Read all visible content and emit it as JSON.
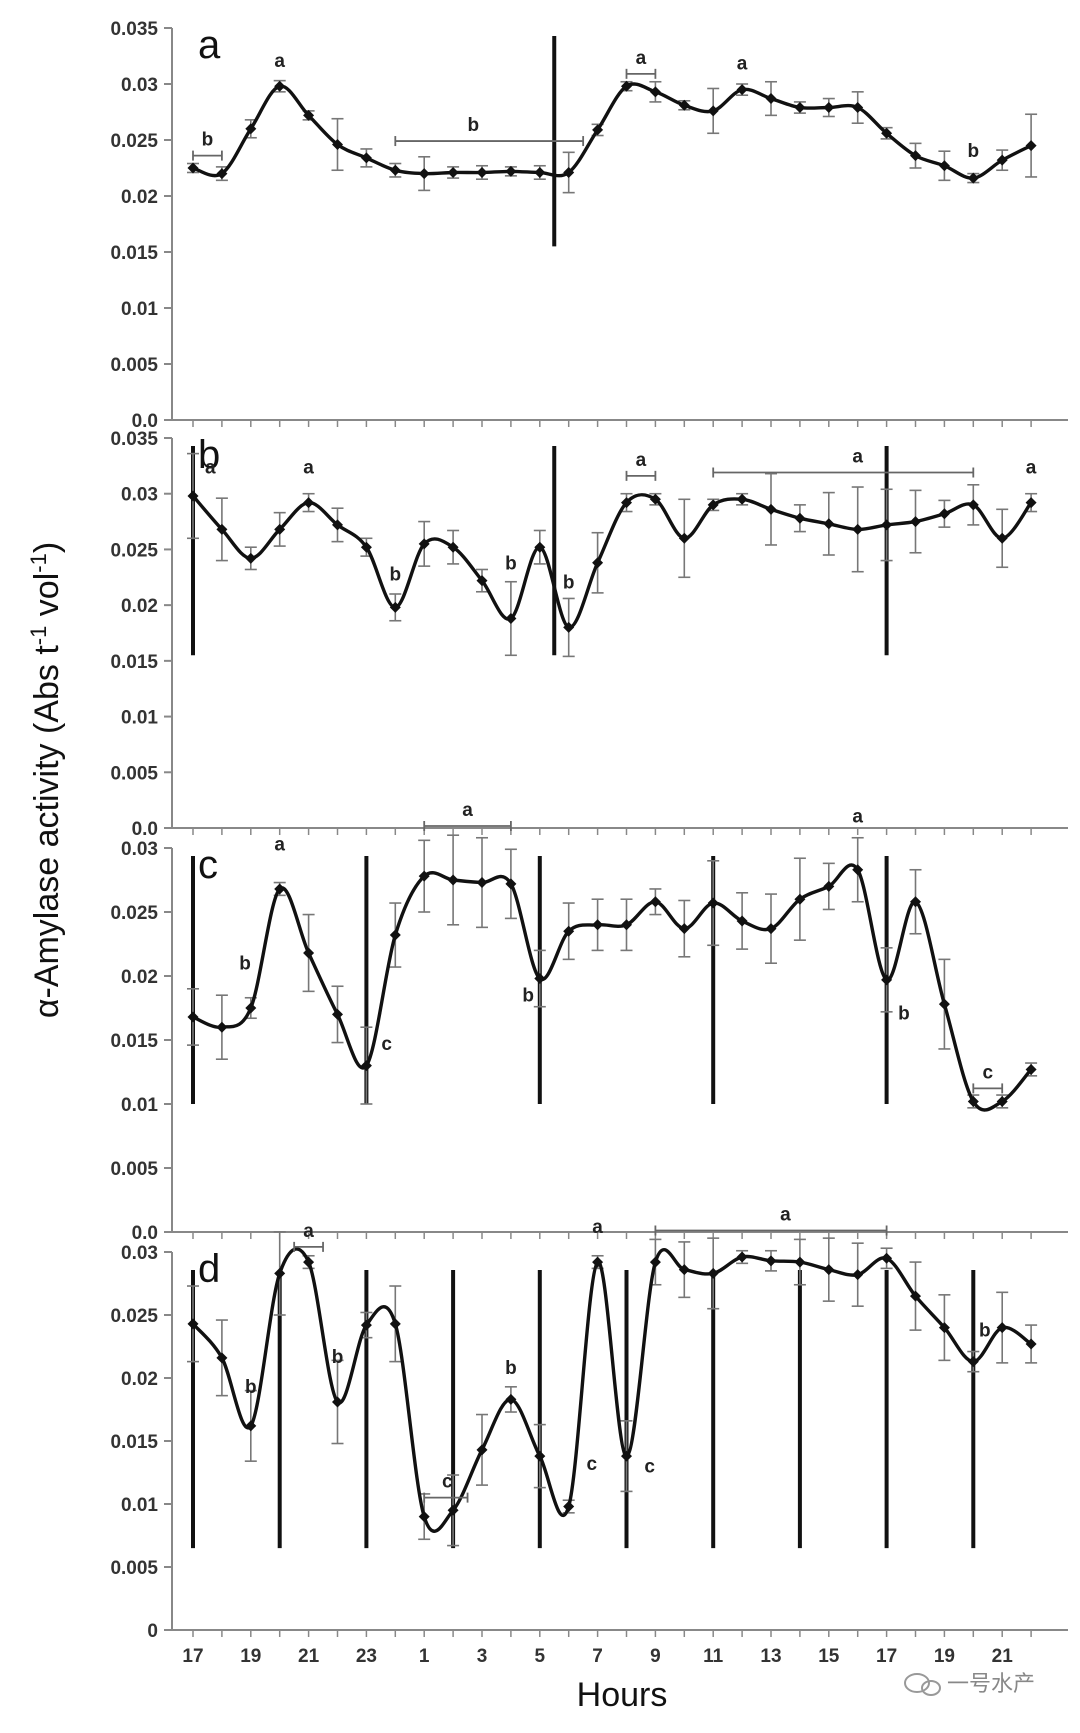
{
  "chart_data": [
    {
      "type": "line",
      "panel": "a",
      "ylim": [
        0,
        0.035
      ],
      "yticks": [
        "0.035",
        "0.03",
        "0.025",
        "0.02",
        "0.015",
        "0.01",
        "0.005",
        "0.0"
      ],
      "x": [
        0,
        1,
        2,
        3,
        4,
        5,
        6,
        7,
        8,
        9,
        10,
        11,
        12,
        13,
        14,
        15,
        16,
        17,
        18,
        19,
        20,
        21,
        22,
        23,
        24,
        25,
        26,
        27,
        28,
        29
      ],
      "values": [
        0.0225,
        0.022,
        0.026,
        0.0298,
        0.0272,
        0.0246,
        0.0234,
        0.0223,
        0.022,
        0.0221,
        0.0221,
        0.0222,
        0.0221,
        0.0221,
        0.0259,
        0.0298,
        0.0293,
        0.0281,
        0.0276,
        0.0295,
        0.0287,
        0.0279,
        0.0279,
        0.0279,
        0.0256,
        0.0236,
        0.0227,
        0.0216,
        0.0232,
        0.0245
      ],
      "errors": [
        0.0004,
        0.0006,
        0.0008,
        0.0005,
        0.0004,
        0.0023,
        0.0008,
        0.0006,
        0.0015,
        0.0005,
        0.0006,
        0.0004,
        0.0006,
        0.0018,
        0.0005,
        0.0004,
        0.0009,
        0.0004,
        0.002,
        0.0005,
        0.0015,
        0.0005,
        0.0008,
        0.0014,
        0.0005,
        0.0011,
        0.0013,
        0.0004,
        0.0009,
        0.0028
      ],
      "vlines": [
        12.5
      ],
      "annotations": [
        {
          "label": "b",
          "x": 0.5,
          "y": 0.0245,
          "bracket": [
            0,
            1
          ]
        },
        {
          "label": "a",
          "x": 3,
          "y": 0.0315
        },
        {
          "label": "b",
          "x": 9.7,
          "y": 0.0258,
          "bracket": [
            7,
            13.5
          ]
        },
        {
          "label": "a",
          "x": 15.5,
          "y": 0.0318,
          "bracket": [
            15,
            16
          ]
        },
        {
          "label": "a",
          "x": 19,
          "y": 0.0313
        },
        {
          "label": "b",
          "x": 27,
          "y": 0.0235
        }
      ]
    },
    {
      "type": "line",
      "panel": "b",
      "ylim": [
        0,
        0.035
      ],
      "yticks": [
        "0.035",
        "0.03",
        "0.025",
        "0.02",
        "0.015",
        "0.01",
        "0.005",
        "0.0"
      ],
      "x": [
        0,
        1,
        2,
        3,
        4,
        5,
        6,
        7,
        8,
        9,
        10,
        11,
        12,
        13,
        14,
        15,
        16,
        17,
        18,
        19,
        20,
        21,
        22,
        23,
        24,
        25,
        26,
        27,
        28,
        29
      ],
      "values": [
        0.0298,
        0.0268,
        0.0242,
        0.0268,
        0.0292,
        0.0272,
        0.0252,
        0.0198,
        0.0255,
        0.0252,
        0.0222,
        0.0188,
        0.0252,
        0.018,
        0.0238,
        0.0292,
        0.0295,
        0.026,
        0.029,
        0.0295,
        0.0286,
        0.0278,
        0.0273,
        0.0268,
        0.0272,
        0.0275,
        0.0282,
        0.029,
        0.026,
        0.0292
      ],
      "errors": [
        0.0038,
        0.0028,
        0.001,
        0.0015,
        0.0008,
        0.0015,
        0.0008,
        0.0012,
        0.002,
        0.0015,
        0.001,
        0.0033,
        0.0015,
        0.0026,
        0.0027,
        0.0008,
        0.0005,
        0.0035,
        0.0005,
        0.0005,
        0.0032,
        0.0012,
        0.0028,
        0.0038,
        0.0032,
        0.0028,
        0.0012,
        0.0018,
        0.0026,
        0.0008
      ],
      "vlines": [
        0,
        12.5,
        24
      ],
      "annotations": [
        {
          "label": "a",
          "x": 0.6,
          "y": 0.0318
        },
        {
          "label": "a",
          "x": 4,
          "y": 0.0318
        },
        {
          "label": "b",
          "x": 7,
          "y": 0.0222
        },
        {
          "label": "b",
          "x": 11,
          "y": 0.0232
        },
        {
          "label": "b",
          "x": 13,
          "y": 0.0215
        },
        {
          "label": "a",
          "x": 15.5,
          "y": 0.0325,
          "bracket": [
            15,
            16
          ]
        },
        {
          "label": "a",
          "x": 23,
          "y": 0.0328,
          "bracket": [
            18,
            27
          ]
        },
        {
          "label": "a",
          "x": 29,
          "y": 0.0318
        }
      ]
    },
    {
      "type": "line",
      "panel": "c",
      "ylim": [
        0,
        0.03
      ],
      "yticks": [
        "0.03",
        "0.025",
        "0.02",
        "0.015",
        "0.01",
        "0.005",
        "0.0"
      ],
      "x": [
        0,
        1,
        2,
        3,
        4,
        5,
        6,
        7,
        8,
        9,
        10,
        11,
        12,
        13,
        14,
        15,
        16,
        17,
        18,
        19,
        20,
        21,
        22,
        23,
        24,
        25,
        26,
        27,
        28,
        29
      ],
      "values": [
        0.0168,
        0.016,
        0.0175,
        0.0268,
        0.0218,
        0.017,
        0.013,
        0.0232,
        0.0278,
        0.0275,
        0.0273,
        0.0272,
        0.0198,
        0.0235,
        0.024,
        0.024,
        0.0258,
        0.0237,
        0.0257,
        0.0243,
        0.0237,
        0.026,
        0.027,
        0.0283,
        0.0197,
        0.0258,
        0.0178,
        0.0102,
        0.0102,
        0.0127
      ],
      "errors": [
        0.0022,
        0.0025,
        0.0008,
        0.0005,
        0.003,
        0.0022,
        0.003,
        0.0025,
        0.0028,
        0.0035,
        0.0035,
        0.0027,
        0.0022,
        0.0022,
        0.002,
        0.002,
        0.001,
        0.0022,
        0.0033,
        0.0022,
        0.0027,
        0.0032,
        0.0018,
        0.0025,
        0.0025,
        0.0025,
        0.0035,
        0.0005,
        0.0005,
        0.0005
      ],
      "vlines": [
        0,
        6,
        12,
        18,
        24
      ],
      "annotations": [
        {
          "label": "b",
          "x": 1.8,
          "y": 0.0205
        },
        {
          "label": "a",
          "x": 3,
          "y": 0.0298
        },
        {
          "label": "c",
          "x": 6.7,
          "y": 0.0142
        },
        {
          "label": "a",
          "x": 9.5,
          "y": 0.0325,
          "bracket": [
            8,
            11
          ]
        },
        {
          "label": "b",
          "x": 11.6,
          "y": 0.018
        },
        {
          "label": "a",
          "x": 23,
          "y": 0.032
        },
        {
          "label": "b",
          "x": 24.6,
          "y": 0.0166
        },
        {
          "label": "c",
          "x": 27.5,
          "y": 0.012,
          "bracket": [
            27,
            28
          ]
        }
      ]
    },
    {
      "type": "line",
      "panel": "d",
      "ylim": [
        0,
        0.03
      ],
      "yticks": [
        "0.03",
        "0.025",
        "0.02",
        "0.015",
        "0.01",
        "0.005",
        "0"
      ],
      "xticks": [
        "17",
        "19",
        "21",
        "23",
        "1",
        "3",
        "5",
        "7",
        "9",
        "11",
        "13",
        "15",
        "17",
        "19",
        "21"
      ],
      "xlabel": "Hours",
      "x": [
        0,
        1,
        2,
        3,
        4,
        5,
        6,
        7,
        8,
        9,
        10,
        11,
        12,
        13,
        14,
        15,
        16,
        17,
        18,
        19,
        20,
        21,
        22,
        23,
        24,
        25,
        26,
        27,
        28,
        29
      ],
      "values": [
        0.0243,
        0.0216,
        0.0162,
        0.0283,
        0.0292,
        0.0181,
        0.0242,
        0.0243,
        0.009,
        0.0095,
        0.0143,
        0.0183,
        0.0138,
        0.0098,
        0.0292,
        0.0138,
        0.0292,
        0.0286,
        0.0283,
        0.0296,
        0.0293,
        0.0292,
        0.0286,
        0.0282,
        0.0295,
        0.0265,
        0.024,
        0.0213,
        0.024,
        0.0227
      ],
      "errors": [
        0.003,
        0.003,
        0.0028,
        0.0033,
        0.0005,
        0.0033,
        0.001,
        0.003,
        0.0018,
        0.0028,
        0.0028,
        0.001,
        0.0025,
        0.0005,
        0.0005,
        0.0028,
        0.0018,
        0.0022,
        0.0028,
        0.0005,
        0.0008,
        0.0018,
        0.0025,
        0.0025,
        0.0008,
        0.0027,
        0.0026,
        0.0008,
        0.0028,
        0.0015
      ],
      "vlines": [
        0,
        3,
        6,
        9,
        12,
        15,
        18,
        21,
        24,
        27
      ],
      "annotations": [
        {
          "label": "b",
          "x": 2,
          "y": 0.0188
        },
        {
          "label": "a",
          "x": 4,
          "y": 0.0312,
          "bracket": [
            3.5,
            4.5
          ]
        },
        {
          "label": "b",
          "x": 5,
          "y": 0.0212
        },
        {
          "label": "c",
          "x": 8.8,
          "y": 0.0113,
          "bracket": [
            8,
            9.5
          ]
        },
        {
          "label": "b",
          "x": 11,
          "y": 0.0203
        },
        {
          "label": "c",
          "x": 13.8,
          "y": 0.0127
        },
        {
          "label": "a",
          "x": 14,
          "y": 0.0315
        },
        {
          "label": "c",
          "x": 15.8,
          "y": 0.0125
        },
        {
          "label": "a",
          "x": 20.5,
          "y": 0.0325,
          "bracket": [
            16,
            24
          ]
        },
        {
          "label": "b",
          "x": 27.4,
          "y": 0.0233
        }
      ]
    }
  ],
  "y_axis_title": "α-Amylase activity (Abs t-1 vol-1)",
  "y_axis_title_parts": {
    "p1": "α-Amylase activity (Abs t",
    "sup1": "-1",
    "p2": " vol",
    "sup2": "-1",
    "p3": ")"
  },
  "x_axis_title": "Hours",
  "watermark": "一号水产",
  "colors": {
    "line": "#111111",
    "errorbar": "#777777",
    "axis": "#888888"
  }
}
